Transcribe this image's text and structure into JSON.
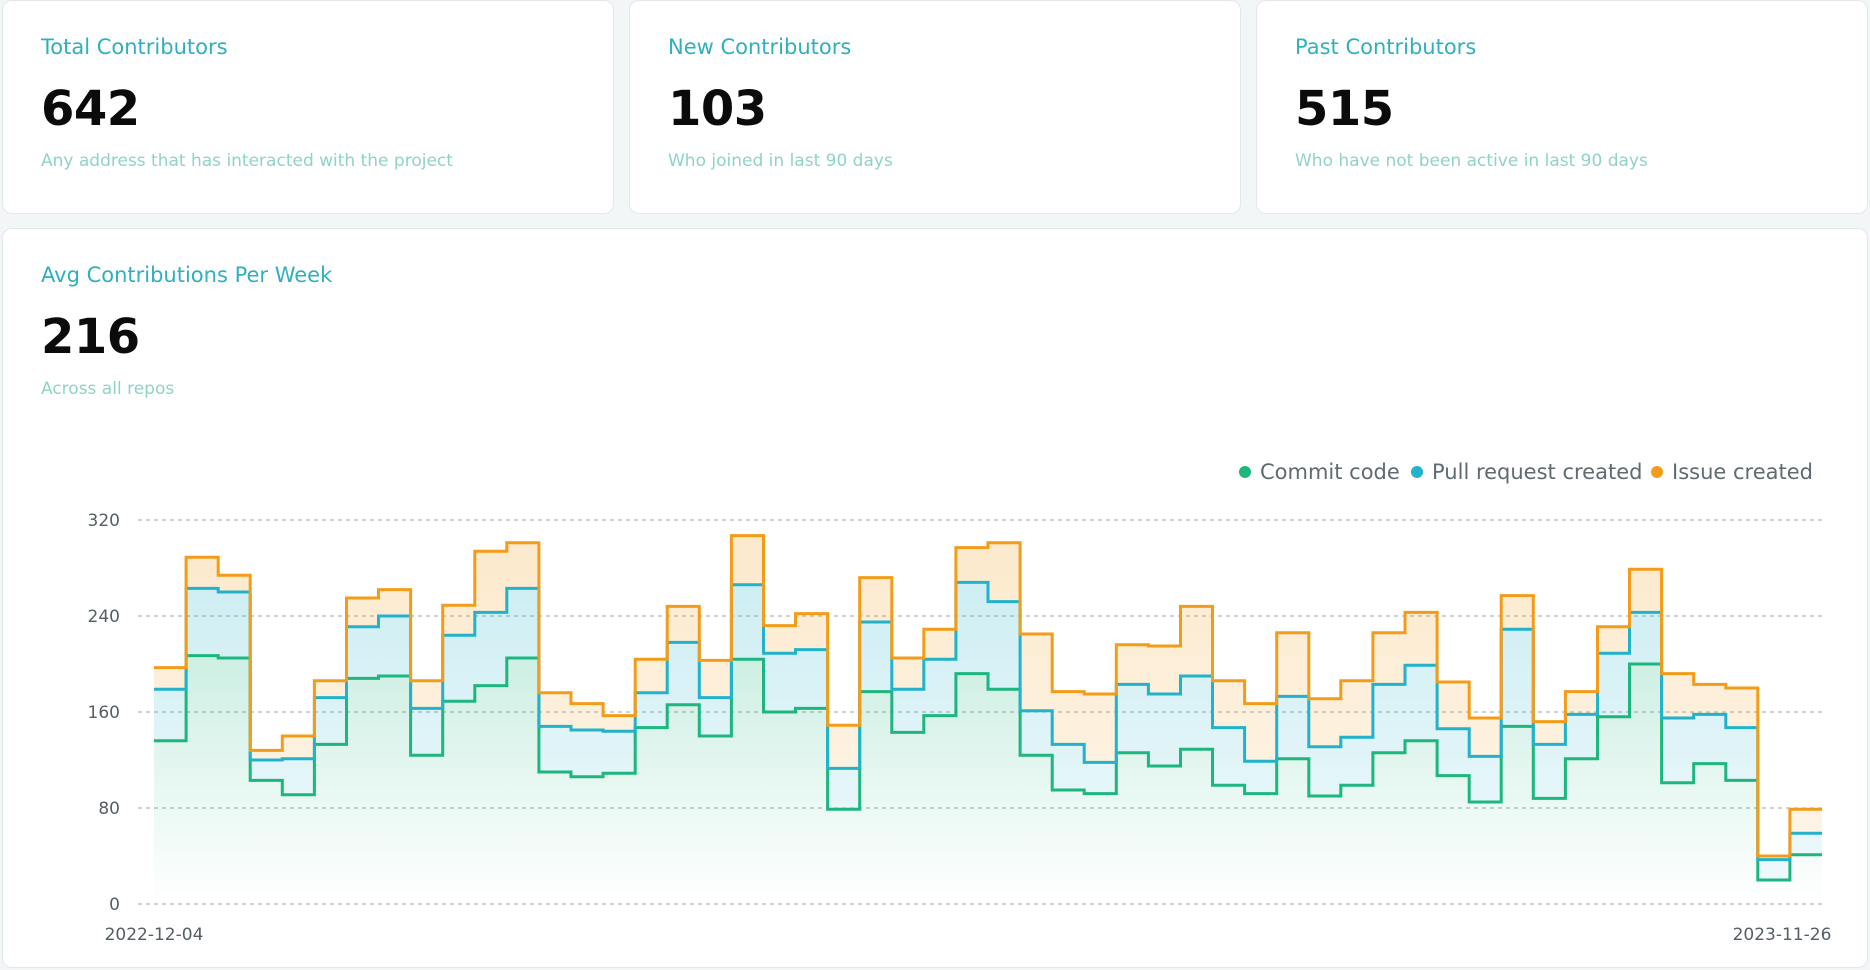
{
  "stats": [
    {
      "title": "Total Contributors",
      "value": "642",
      "desc": "Any address that has interacted with the project"
    },
    {
      "title": "New Contributors",
      "value": "103",
      "desc": "Who joined in last 90 days"
    },
    {
      "title": "Past Contributors",
      "value": "515",
      "desc": "Who have not been active in last 90 days"
    }
  ],
  "avg": {
    "title": "Avg Contributions Per Week",
    "value": "216",
    "desc": "Across all repos"
  },
  "chart_data": {
    "type": "area",
    "step": true,
    "stacked": true,
    "x_first": "2022-12-04",
    "x_last": "2023-11-26",
    "ylim": [
      0,
      320
    ],
    "yticks": [
      0,
      80,
      160,
      240,
      320
    ],
    "grid": true,
    "legend": "top-right",
    "series": [
      {
        "name": "Commit code",
        "color": "#1db67e",
        "values": [
          136,
          207,
          205,
          103,
          91,
          133,
          188,
          190,
          124,
          169,
          182,
          205,
          110,
          106,
          109,
          147,
          166,
          140,
          204,
          160,
          163,
          79,
          177,
          143,
          157,
          192,
          179,
          124,
          95,
          92,
          126,
          115,
          129,
          99,
          92,
          121,
          90,
          99,
          126,
          136,
          107,
          85,
          148,
          88,
          121,
          156,
          200,
          101,
          117,
          103,
          20,
          41
        ]
      },
      {
        "name": "Pull request created",
        "color": "#22b2cb",
        "values": [
          179,
          263,
          260,
          120,
          121,
          172,
          231,
          240,
          163,
          224,
          243,
          263,
          148,
          145,
          144,
          176,
          218,
          172,
          266,
          209,
          212,
          113,
          235,
          179,
          204,
          268,
          252,
          161,
          133,
          118,
          183,
          175,
          190,
          147,
          119,
          173,
          131,
          139,
          183,
          199,
          146,
          123,
          229,
          133,
          158,
          209,
          243,
          155,
          158,
          147,
          37,
          59
        ]
      },
      {
        "name": "Issue created",
        "color": "#f39c1a",
        "values": [
          197,
          289,
          274,
          128,
          140,
          186,
          255,
          262,
          186,
          249,
          294,
          301,
          176,
          167,
          157,
          204,
          248,
          203,
          307,
          232,
          242,
          149,
          272,
          205,
          229,
          297,
          301,
          225,
          177,
          175,
          216,
          215,
          248,
          186,
          167,
          226,
          171,
          186,
          226,
          243,
          185,
          155,
          257,
          152,
          177,
          231,
          279,
          192,
          183,
          180,
          40,
          79
        ]
      }
    ]
  }
}
